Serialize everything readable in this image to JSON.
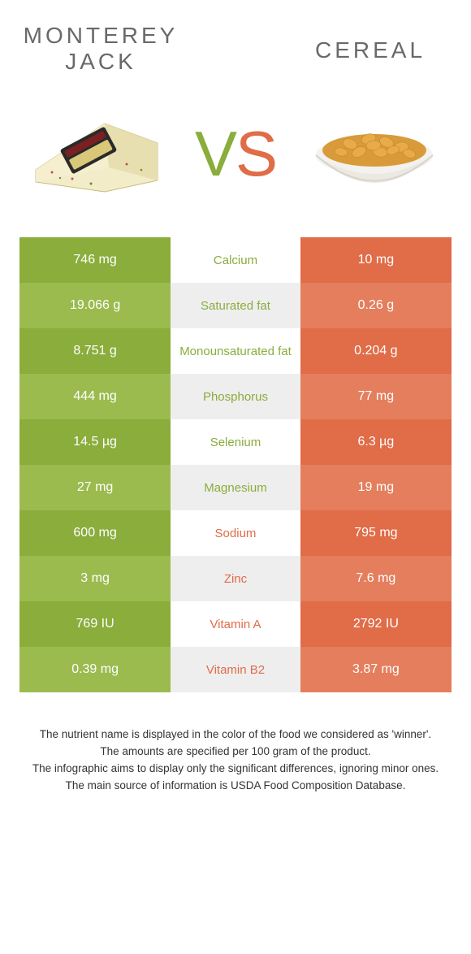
{
  "titles": {
    "left": "MONTEREY JACK",
    "right": "CEREAL"
  },
  "vs": {
    "v": "V",
    "s": "S"
  },
  "colors": {
    "green": "#8aad3c",
    "greenLight": "#9bbb4f",
    "orange": "#e06c48",
    "orangeLight": "#e47e5d",
    "midGrey": "#eeeeee",
    "white": "#ffffff",
    "titleGrey": "#696969"
  },
  "rows": [
    {
      "nutrient": "Calcium",
      "left": "746 mg",
      "right": "10 mg",
      "winner": "left"
    },
    {
      "nutrient": "Saturated fat",
      "left": "19.066 g",
      "right": "0.26 g",
      "winner": "left"
    },
    {
      "nutrient": "Monounsaturated fat",
      "left": "8.751 g",
      "right": "0.204 g",
      "winner": "left"
    },
    {
      "nutrient": "Phosphorus",
      "left": "444 mg",
      "right": "77 mg",
      "winner": "left"
    },
    {
      "nutrient": "Selenium",
      "left": "14.5 µg",
      "right": "6.3 µg",
      "winner": "left"
    },
    {
      "nutrient": "Magnesium",
      "left": "27 mg",
      "right": "19 mg",
      "winner": "left"
    },
    {
      "nutrient": "Sodium",
      "left": "600 mg",
      "right": "795 mg",
      "winner": "right"
    },
    {
      "nutrient": "Zinc",
      "left": "3 mg",
      "right": "7.6 mg",
      "winner": "right"
    },
    {
      "nutrient": "Vitamin A",
      "left": "769 IU",
      "right": "2792 IU",
      "winner": "right"
    },
    {
      "nutrient": "Vitamin B2",
      "left": "0.39 mg",
      "right": "3.87 mg",
      "winner": "right"
    }
  ],
  "footer": {
    "l1": "The nutrient name is displayed in the color of the food we considered as 'winner'.",
    "l2": "The amounts are specified per 100 gram of the product.",
    "l3": "The infographic aims to display only the significant differences, ignoring minor ones.",
    "l4": "The main source of information is USDA Food Composition Database."
  }
}
